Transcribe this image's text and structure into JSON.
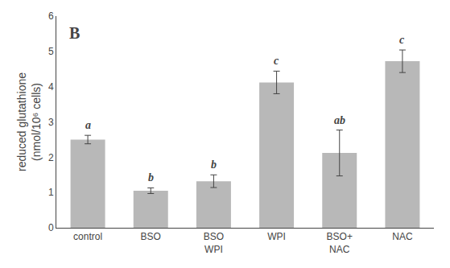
{
  "chart_data": {
    "type": "bar",
    "categories": [
      "control",
      "BSO",
      "BSO\nWPI",
      "WPI",
      "BSO+\nNAC",
      "NAC"
    ],
    "values": [
      2.5,
      1.05,
      1.32,
      4.12,
      2.12,
      4.72
    ],
    "errors": [
      0.12,
      0.08,
      0.18,
      0.32,
      0.65,
      0.32
    ],
    "letters": [
      "a",
      "b",
      "b",
      "c",
      "ab",
      "c"
    ],
    "color": "#b8b8b8",
    "ylabel": "reduced glutathione\n(nmol/10⁶ cells)",
    "annotations": [
      "B"
    ],
    "ylim": [
      0,
      6
    ],
    "yticks": [
      0,
      1,
      2,
      3,
      4,
      5,
      6
    ],
    "grid": false
  }
}
